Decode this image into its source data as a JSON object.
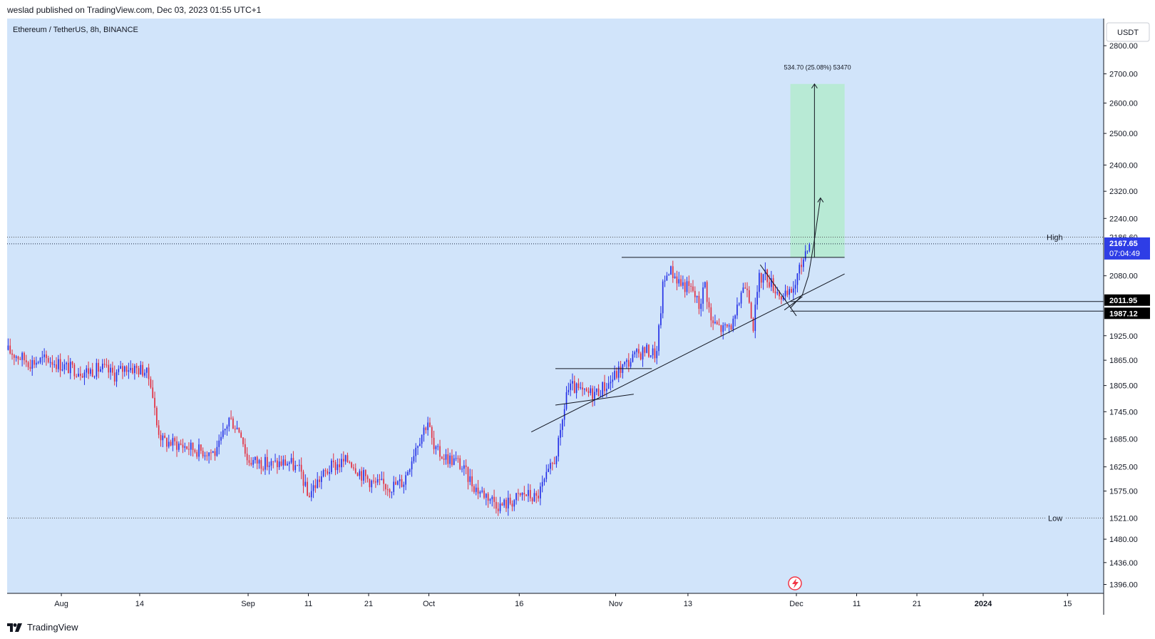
{
  "header": {
    "published_text": "weslad published on TradingView.com, Dec 03, 2023 01:55 UTC+1"
  },
  "footer": {
    "brand": "TradingView"
  },
  "colors": {
    "background": "#d1e4fa",
    "up": "#2430e6",
    "down": "#e32e3f",
    "target_box": "#b8ead5",
    "current_price_label": "#2e3de6",
    "level_label": "#000000"
  },
  "chart_data": {
    "type": "candlestick",
    "title": "Ethereum / TetherUS, 8h, BINANCE",
    "currency_label": "USDT",
    "y_scale": "log",
    "ylim": [
      1380,
      2900
    ],
    "y_ticks": [
      2800,
      2700,
      2600,
      2500,
      2400,
      2320,
      2240,
      2080,
      1925,
      1865,
      1805,
      1745,
      1685,
      1625,
      1575,
      1480,
      1436,
      1396
    ],
    "y_tick_labels": [
      "2800.00",
      "2700.00",
      "2600.00",
      "2500.00",
      "2400.00",
      "2320.00",
      "2240.00",
      "2080.00",
      "1925.00",
      "1865.00",
      "1805.00",
      "1745.00",
      "1685.00",
      "1625.00",
      "1575.00",
      "1480.00",
      "1436.00",
      "1396.00"
    ],
    "x_start": "2023-07-23",
    "x_end": "2024-01-21",
    "x_ticks": [
      {
        "date": "2023-08-01",
        "label": "Aug"
      },
      {
        "date": "2023-08-14",
        "label": "14"
      },
      {
        "date": "2023-09-01",
        "label": "Sep"
      },
      {
        "date": "2023-09-11",
        "label": "11"
      },
      {
        "date": "2023-09-21",
        "label": "21"
      },
      {
        "date": "2023-10-01",
        "label": "Oct"
      },
      {
        "date": "2023-10-16",
        "label": "16"
      },
      {
        "date": "2023-11-01",
        "label": "Nov"
      },
      {
        "date": "2023-11-13",
        "label": "13"
      },
      {
        "date": "2023-12-01",
        "label": "Dec"
      },
      {
        "date": "2023-12-11",
        "label": "11"
      },
      {
        "date": "2023-12-21",
        "label": "21"
      },
      {
        "date": "2024-01-01",
        "label": "2024"
      },
      {
        "date": "2024-01-15",
        "label": "15"
      }
    ],
    "price_path": [
      [
        "2023-07-23",
        1890
      ],
      [
        "2023-07-25",
        1875
      ],
      [
        "2023-07-27",
        1860
      ],
      [
        "2023-07-30",
        1868
      ],
      [
        "2023-08-02",
        1848
      ],
      [
        "2023-08-05",
        1838
      ],
      [
        "2023-08-08",
        1845
      ],
      [
        "2023-08-10",
        1830
      ],
      [
        "2023-08-12",
        1850
      ],
      [
        "2023-08-15",
        1840
      ],
      [
        "2023-08-16",
        1815
      ],
      [
        "2023-08-17",
        1715
      ],
      [
        "2023-08-18",
        1680
      ],
      [
        "2023-08-21",
        1672
      ],
      [
        "2023-08-24",
        1660
      ],
      [
        "2023-08-27",
        1655
      ],
      [
        "2023-08-29",
        1730
      ],
      [
        "2023-08-31",
        1700
      ],
      [
        "2023-09-01",
        1640
      ],
      [
        "2023-09-05",
        1630
      ],
      [
        "2023-09-08",
        1635
      ],
      [
        "2023-09-10",
        1612
      ],
      [
        "2023-09-11",
        1565
      ],
      [
        "2023-09-13",
        1600
      ],
      [
        "2023-09-15",
        1625
      ],
      [
        "2023-09-18",
        1640
      ],
      [
        "2023-09-20",
        1610
      ],
      [
        "2023-09-22",
        1590
      ],
      [
        "2023-09-25",
        1585
      ],
      [
        "2023-09-27",
        1595
      ],
      [
        "2023-09-29",
        1670
      ],
      [
        "2023-10-01",
        1725
      ],
      [
        "2023-10-02",
        1660
      ],
      [
        "2023-10-04",
        1645
      ],
      [
        "2023-10-06",
        1635
      ],
      [
        "2023-10-09",
        1580
      ],
      [
        "2023-10-11",
        1565
      ],
      [
        "2023-10-13",
        1545
      ],
      [
        "2023-10-15",
        1555
      ],
      [
        "2023-10-17",
        1570
      ],
      [
        "2023-10-19",
        1560
      ],
      [
        "2023-10-21",
        1610
      ],
      [
        "2023-10-22",
        1640
      ],
      [
        "2023-10-23",
        1690
      ],
      [
        "2023-10-24",
        1790
      ],
      [
        "2023-10-25",
        1800
      ],
      [
        "2023-10-27",
        1785
      ],
      [
        "2023-10-29",
        1790
      ],
      [
        "2023-10-31",
        1810
      ],
      [
        "2023-11-02",
        1845
      ],
      [
        "2023-11-04",
        1870
      ],
      [
        "2023-11-06",
        1890
      ],
      [
        "2023-11-08",
        1880
      ],
      [
        "2023-11-09",
        2050
      ],
      [
        "2023-11-10",
        2100
      ],
      [
        "2023-11-12",
        2060
      ],
      [
        "2023-11-14",
        2040
      ],
      [
        "2023-11-15",
        2000
      ],
      [
        "2023-11-16",
        2060
      ],
      [
        "2023-11-17",
        1960
      ],
      [
        "2023-11-19",
        1940
      ],
      [
        "2023-11-21",
        1960
      ],
      [
        "2023-11-22",
        2040
      ],
      [
        "2023-11-23",
        2060
      ],
      [
        "2023-11-24",
        1950
      ],
      [
        "2023-11-25",
        2070
      ],
      [
        "2023-11-26",
        2085
      ],
      [
        "2023-11-27",
        2060
      ],
      [
        "2023-11-28",
        2040
      ],
      [
        "2023-11-29",
        2020
      ],
      [
        "2023-11-30",
        2030
      ],
      [
        "2023-12-01",
        2060
      ],
      [
        "2023-12-02",
        2110
      ],
      [
        "2023-12-03",
        2167.65
      ]
    ],
    "current_price": {
      "value": 2167.65,
      "label": "2167.65",
      "countdown": "07:04:49"
    },
    "high": {
      "label": "High",
      "value": 2186.6,
      "value_label": "2186.60"
    },
    "low": {
      "label": "Low",
      "value": 1521.0,
      "value_label": "1521.00"
    },
    "levels": [
      {
        "value": 2011.95,
        "label": "2011.95"
      },
      {
        "value": 1987.12,
        "label": "1987.12"
      }
    ],
    "target_box": {
      "start": "2023-11-30",
      "end": "2023-12-09",
      "low": 2130,
      "high": 2665,
      "label": "534.70 (25.08%) 53470"
    },
    "trendlines": [
      {
        "from": [
          "2023-10-18",
          1700
        ],
        "to": [
          "2023-12-09",
          2085
        ]
      },
      {
        "from": [
          "2023-10-22",
          1760
        ],
        "to": [
          "2023-11-04",
          1785
        ]
      },
      {
        "from": [
          "2023-10-22",
          1845
        ],
        "to": [
          "2023-11-07",
          1845
        ]
      },
      {
        "from": [
          "2023-11-02",
          2130
        ],
        "to": [
          "2023-12-09",
          2130
        ]
      },
      {
        "from": [
          "2023-11-25",
          2110
        ],
        "to": [
          "2023-12-01",
          1975
        ]
      },
      {
        "from": [
          "2023-11-29",
          1990
        ],
        "to": [
          "2023-12-02",
          2025
        ]
      }
    ],
    "projection": {
      "points": [
        [
          "2023-11-30",
          1995
        ],
        [
          "2023-12-02",
          2030
        ],
        [
          "2023-12-03",
          2080
        ],
        [
          "2023-12-04",
          2180
        ],
        [
          "2023-12-05",
          2300
        ]
      ],
      "arrow_to": [
        "2023-12-05",
        2665
      ]
    }
  }
}
